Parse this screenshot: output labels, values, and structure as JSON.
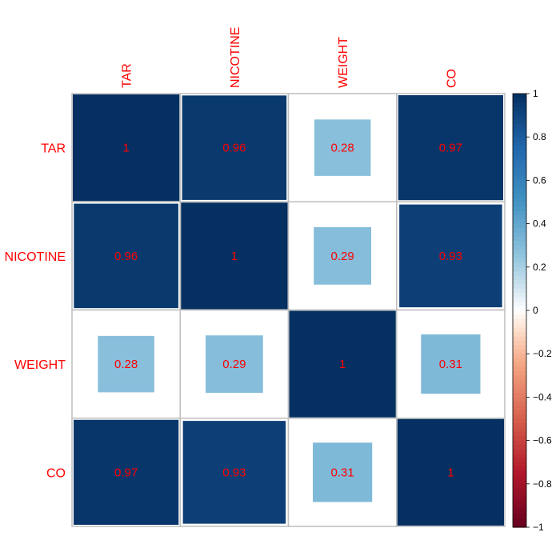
{
  "chart_data": {
    "type": "heatmap",
    "variables": [
      "TAR",
      "NICOTINE",
      "WEIGHT",
      "CO"
    ],
    "matrix": [
      [
        1,
        0.96,
        0.28,
        0.97
      ],
      [
        0.96,
        1,
        0.29,
        0.93
      ],
      [
        0.28,
        0.29,
        1,
        0.31
      ],
      [
        0.97,
        0.93,
        0.31,
        1
      ]
    ],
    "value_labels": [
      [
        "1",
        "0.96",
        "0.28",
        "0.97"
      ],
      [
        "0.96",
        "1",
        "0.29",
        "0.93"
      ],
      [
        "0.28",
        "0.29",
        "1",
        "0.31"
      ],
      [
        "0.97",
        "0.93",
        "0.31",
        "1"
      ]
    ],
    "method": "square",
    "color_scale": {
      "range": [
        -1,
        1
      ],
      "ticks": [
        "1",
        "0.8",
        "0.6",
        "0.4",
        "0.2",
        "0",
        "−0.2",
        "−0.4",
        "−0.6",
        "−0.8",
        "−1"
      ],
      "stops": [
        {
          "v": -1,
          "color": "#67001F"
        },
        {
          "v": -0.75,
          "color": "#B2182B"
        },
        {
          "v": -0.5,
          "color": "#D6604D"
        },
        {
          "v": -0.25,
          "color": "#F4A582"
        },
        {
          "v": -0.1,
          "color": "#FDDBC7"
        },
        {
          "v": 0,
          "color": "#FFFFFF"
        },
        {
          "v": 0.1,
          "color": "#D1E5F0"
        },
        {
          "v": 0.25,
          "color": "#92C5DE"
        },
        {
          "v": 0.5,
          "color": "#4393C3"
        },
        {
          "v": 0.75,
          "color": "#2166AC"
        },
        {
          "v": 1,
          "color": "#053061"
        }
      ]
    },
    "label_color": "#FF0000",
    "grid_color": "#BEBEBE"
  }
}
